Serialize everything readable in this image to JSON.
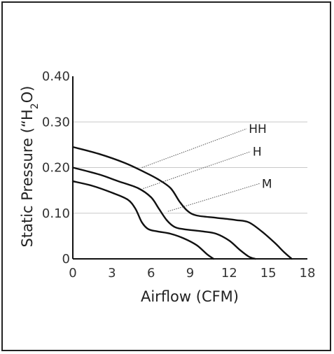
{
  "chart_data": {
    "type": "line",
    "xlabel": "Airflow (CFM)",
    "ylabel": "Static Pressure (\"H2O)",
    "ylabel_parts": {
      "before": "Static Pressure (“H",
      "sub": "2",
      "after": "O)"
    },
    "xlim": [
      0,
      18
    ],
    "ylim": [
      0,
      0.4
    ],
    "x_ticks": [
      "0",
      "3",
      "6",
      "9",
      "12",
      "15",
      "18"
    ],
    "y_ticks": [
      "0",
      "0.10",
      "0.20",
      "0.30",
      "0.40"
    ],
    "grid": "horizontal",
    "legend": "none",
    "series": [
      {
        "name": "HH",
        "points": [
          [
            0,
            0.245
          ],
          [
            2,
            0.23
          ],
          [
            4,
            0.21
          ],
          [
            5.5,
            0.19
          ],
          [
            6.5,
            0.175
          ],
          [
            7.5,
            0.155
          ],
          [
            8.2,
            0.125
          ],
          [
            8.8,
            0.105
          ],
          [
            9.5,
            0.095
          ],
          [
            11,
            0.09
          ],
          [
            12.5,
            0.085
          ],
          [
            13.5,
            0.08
          ],
          [
            14.5,
            0.06
          ],
          [
            15.5,
            0.035
          ],
          [
            16.2,
            0.015
          ],
          [
            16.8,
            0.0
          ]
        ]
      },
      {
        "name": "H",
        "points": [
          [
            0,
            0.2
          ],
          [
            2,
            0.185
          ],
          [
            3.5,
            0.17
          ],
          [
            5,
            0.155
          ],
          [
            6,
            0.135
          ],
          [
            6.6,
            0.11
          ],
          [
            7.2,
            0.085
          ],
          [
            7.8,
            0.07
          ],
          [
            8.5,
            0.065
          ],
          [
            10,
            0.06
          ],
          [
            11,
            0.055
          ],
          [
            12,
            0.04
          ],
          [
            12.8,
            0.02
          ],
          [
            13.5,
            0.005
          ],
          [
            14,
            0.0
          ]
        ]
      },
      {
        "name": "M",
        "points": [
          [
            0,
            0.17
          ],
          [
            1.5,
            0.16
          ],
          [
            3,
            0.145
          ],
          [
            4.2,
            0.13
          ],
          [
            4.8,
            0.11
          ],
          [
            5.3,
            0.08
          ],
          [
            5.8,
            0.065
          ],
          [
            6.5,
            0.06
          ],
          [
            7.5,
            0.055
          ],
          [
            8.5,
            0.045
          ],
          [
            9.5,
            0.03
          ],
          [
            10.3,
            0.01
          ],
          [
            10.8,
            0.0
          ]
        ]
      }
    ],
    "annotations": [
      {
        "text": "HH",
        "series": "HH",
        "at": [
          5.3,
          0.2
        ],
        "label_at": [
          13.5,
          0.285
        ]
      },
      {
        "text": "H",
        "series": "H",
        "at": [
          5.4,
          0.154
        ],
        "label_at": [
          13.8,
          0.235
        ]
      },
      {
        "text": "M",
        "series": "M",
        "at": [
          7.3,
          0.104
        ],
        "label_at": [
          14.5,
          0.165
        ]
      }
    ],
    "colors": {
      "line": "#111111",
      "grid": "#c8c8c8",
      "leader": "#555555"
    }
  }
}
